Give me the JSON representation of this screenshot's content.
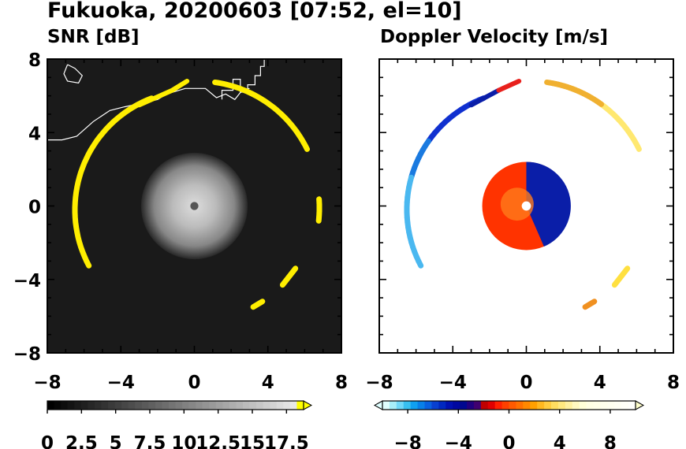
{
  "title": "Fukuoka, 20200603 [07:52, el=10]",
  "chart_data": [
    {
      "type": "heatmap",
      "title": "SNR [dB]",
      "xlim": [
        -8,
        8
      ],
      "ylim": [
        -8,
        8
      ],
      "x_ticks": [
        "−8",
        "−4",
        "0",
        "4",
        "8"
      ],
      "y_ticks": [
        "8",
        "4",
        "0",
        "−4",
        "−8"
      ],
      "colorbar": {
        "range": [
          0,
          18.75
        ],
        "ticks": [
          "0",
          "2.5",
          "5",
          "7.5",
          "10",
          "12.5",
          "15",
          "17.5"
        ],
        "colors": [
          "#000000",
          "#ffff00"
        ]
      },
      "background_color": "#1a1a1a",
      "high_color": "#ffee00"
    },
    {
      "type": "heatmap",
      "title": "Doppler Velocity [m/s]",
      "xlim": [
        -8,
        8
      ],
      "ylim": [
        -8,
        8
      ],
      "x_ticks": [
        "−8",
        "−4",
        "0",
        "4",
        "8"
      ],
      "y_ticks": [
        "8",
        "4",
        "0",
        "−4",
        "−8"
      ],
      "colorbar": {
        "range": [
          -10,
          10
        ],
        "ticks": [
          "−8",
          "−4",
          "0",
          "4",
          "8"
        ],
        "colors": [
          "#e0ffff",
          "#00b0ff",
          "#0000a0",
          "#ff0000",
          "#ff9900",
          "#ffffa0"
        ]
      }
    }
  ]
}
